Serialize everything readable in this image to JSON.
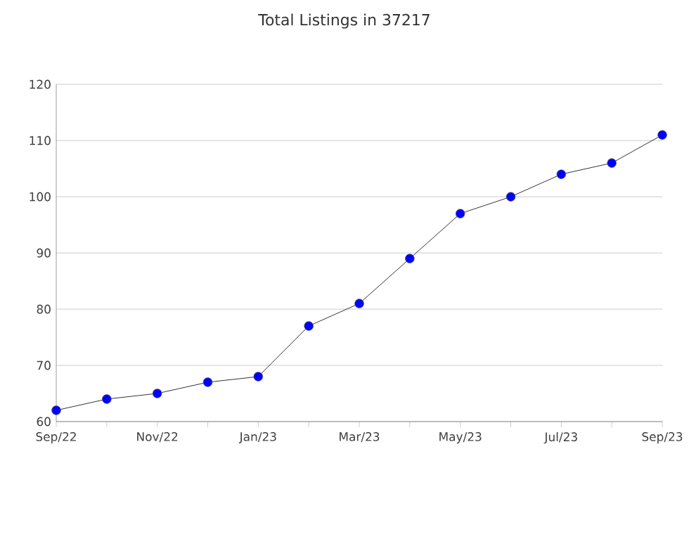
{
  "chart_data": {
    "type": "line",
    "title": "Total Listings in 37217",
    "categories": [
      "Sep/22",
      null,
      "Nov/22",
      null,
      "Jan/23",
      null,
      "Mar/23",
      null,
      "May/23",
      null,
      "Jul/23",
      null,
      "Sep/23"
    ],
    "series": [
      {
        "color": "#0000ff",
        "values": [
          62,
          64,
          65,
          67,
          68,
          77,
          81,
          89,
          97,
          100,
          104,
          106,
          111
        ]
      }
    ],
    "ylim": [
      60,
      120
    ],
    "yticks": [
      60,
      70,
      80,
      90,
      100,
      110,
      120
    ],
    "grid": "y",
    "marker": "circle",
    "line_style": "solid"
  }
}
